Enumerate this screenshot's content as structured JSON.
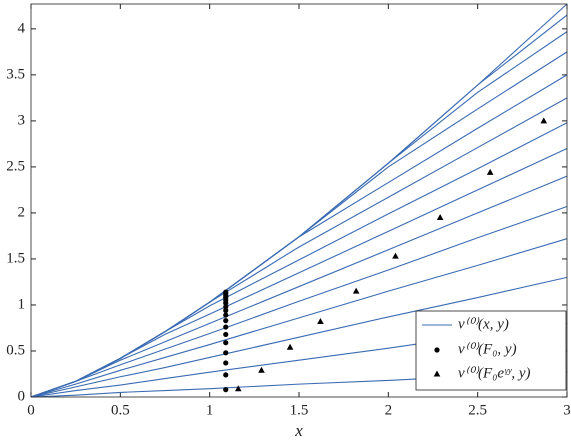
{
  "chart_data": {
    "type": "line",
    "x_label": "x",
    "xlim": [
      0,
      3
    ],
    "ylim": [
      0,
      4.27
    ],
    "xticks": [
      0,
      0.5,
      1,
      1.5,
      2,
      2.5,
      3
    ],
    "yticks": [
      0,
      0.5,
      1,
      1.5,
      2,
      2.5,
      3,
      3.5,
      4
    ],
    "legend_position": "lower right",
    "line_family": {
      "name": "v⁽⁰⁾(x, y)",
      "color": "#3a6bb3",
      "x": [
        0,
        0.25,
        0.5,
        0.75,
        1,
        1.5,
        2,
        2.5,
        3
      ],
      "curves": [
        [
          0,
          0.02,
          0.05,
          0.07,
          0.09,
          0.14,
          0.18,
          0.23,
          0.27
        ],
        [
          0,
          0.07,
          0.13,
          0.2,
          0.27,
          0.4,
          0.53,
          0.67,
          0.8
        ],
        [
          0,
          0.11,
          0.22,
          0.32,
          0.43,
          0.65,
          0.87,
          1.08,
          1.3
        ],
        [
          0,
          0.14,
          0.29,
          0.43,
          0.57,
          0.86,
          1.15,
          1.43,
          1.72
        ],
        [
          0,
          0.17,
          0.35,
          0.52,
          0.69,
          1.04,
          1.38,
          1.73,
          2.07
        ],
        [
          0,
          0.17,
          0.4,
          0.6,
          0.8,
          1.2,
          1.6,
          2.0,
          2.4
        ],
        [
          0,
          0.17,
          0.42,
          0.68,
          0.9,
          1.35,
          1.8,
          2.25,
          2.7
        ],
        [
          0,
          0.17,
          0.42,
          0.71,
          0.99,
          1.49,
          1.99,
          2.48,
          2.98
        ],
        [
          0,
          0.17,
          0.42,
          0.71,
          1.03,
          1.63,
          2.17,
          2.71,
          3.25
        ],
        [
          0,
          0.17,
          0.42,
          0.71,
          1.03,
          1.74,
          2.33,
          2.92,
          3.5
        ],
        [
          0,
          0.17,
          0.42,
          0.71,
          1.03,
          1.74,
          2.5,
          3.13,
          3.75
        ],
        [
          0,
          0.17,
          0.42,
          0.71,
          1.03,
          1.74,
          2.54,
          3.31,
          3.97
        ],
        [
          0,
          0.17,
          0.42,
          0.71,
          1.03,
          1.74,
          2.54,
          3.39,
          4.15
        ],
        [
          0,
          0.17,
          0.42,
          0.71,
          1.03,
          1.74,
          2.54,
          3.39,
          4.27
        ]
      ]
    },
    "series": [
      {
        "name": "v⁽⁰⁾(F₀, y)",
        "marker": "circle",
        "color": "#000000",
        "x": [
          1.09,
          1.09,
          1.09,
          1.09,
          1.09,
          1.09,
          1.09,
          1.09,
          1.09,
          1.09,
          1.09,
          1.09,
          1.09,
          1.09,
          1.09,
          1.09,
          1.09
        ],
        "values": [
          0.08,
          0.24,
          0.37,
          0.48,
          0.59,
          0.68,
          0.76,
          0.83,
          0.89,
          0.94,
          0.98,
          1.02,
          1.05,
          1.08,
          1.1,
          1.12,
          1.14
        ]
      },
      {
        "name": "v⁽⁰⁾(F₀eᵞʸ, y)",
        "marker": "triangle",
        "color": "#000000",
        "x": [
          1.16,
          1.29,
          1.45,
          1.62,
          1.82,
          2.04,
          2.29,
          2.57,
          2.87
        ],
        "values": [
          0.09,
          0.29,
          0.54,
          0.82,
          1.15,
          1.53,
          1.95,
          2.44,
          3.0
        ]
      }
    ]
  }
}
